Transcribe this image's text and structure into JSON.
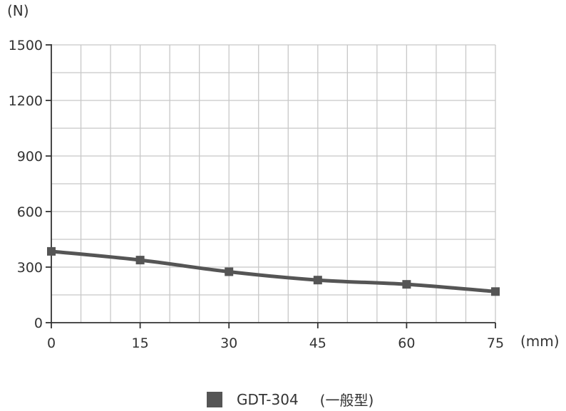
{
  "chart_data": {
    "type": "line",
    "y_unit_label": "(N)",
    "x_unit_label": "(mm)",
    "x": [
      0,
      15,
      30,
      45,
      60,
      75
    ],
    "xlim": [
      0,
      75
    ],
    "ylim": [
      0,
      1500
    ],
    "x_ticks": [
      "0",
      "15",
      "30",
      "45",
      "60",
      "75"
    ],
    "y_ticks": [
      "0",
      "300",
      "600",
      "900",
      "1200",
      "1500"
    ],
    "series": [
      {
        "name": "GDT-304",
        "values": [
          385,
          338,
          275,
          230,
          207,
          168
        ]
      }
    ],
    "legend": {
      "position": "bottom-center",
      "suffix": "(一般型)"
    },
    "grid": true,
    "colors": {
      "line": "#555555",
      "grid": "#c8c8c8",
      "axis": "#333333"
    }
  }
}
